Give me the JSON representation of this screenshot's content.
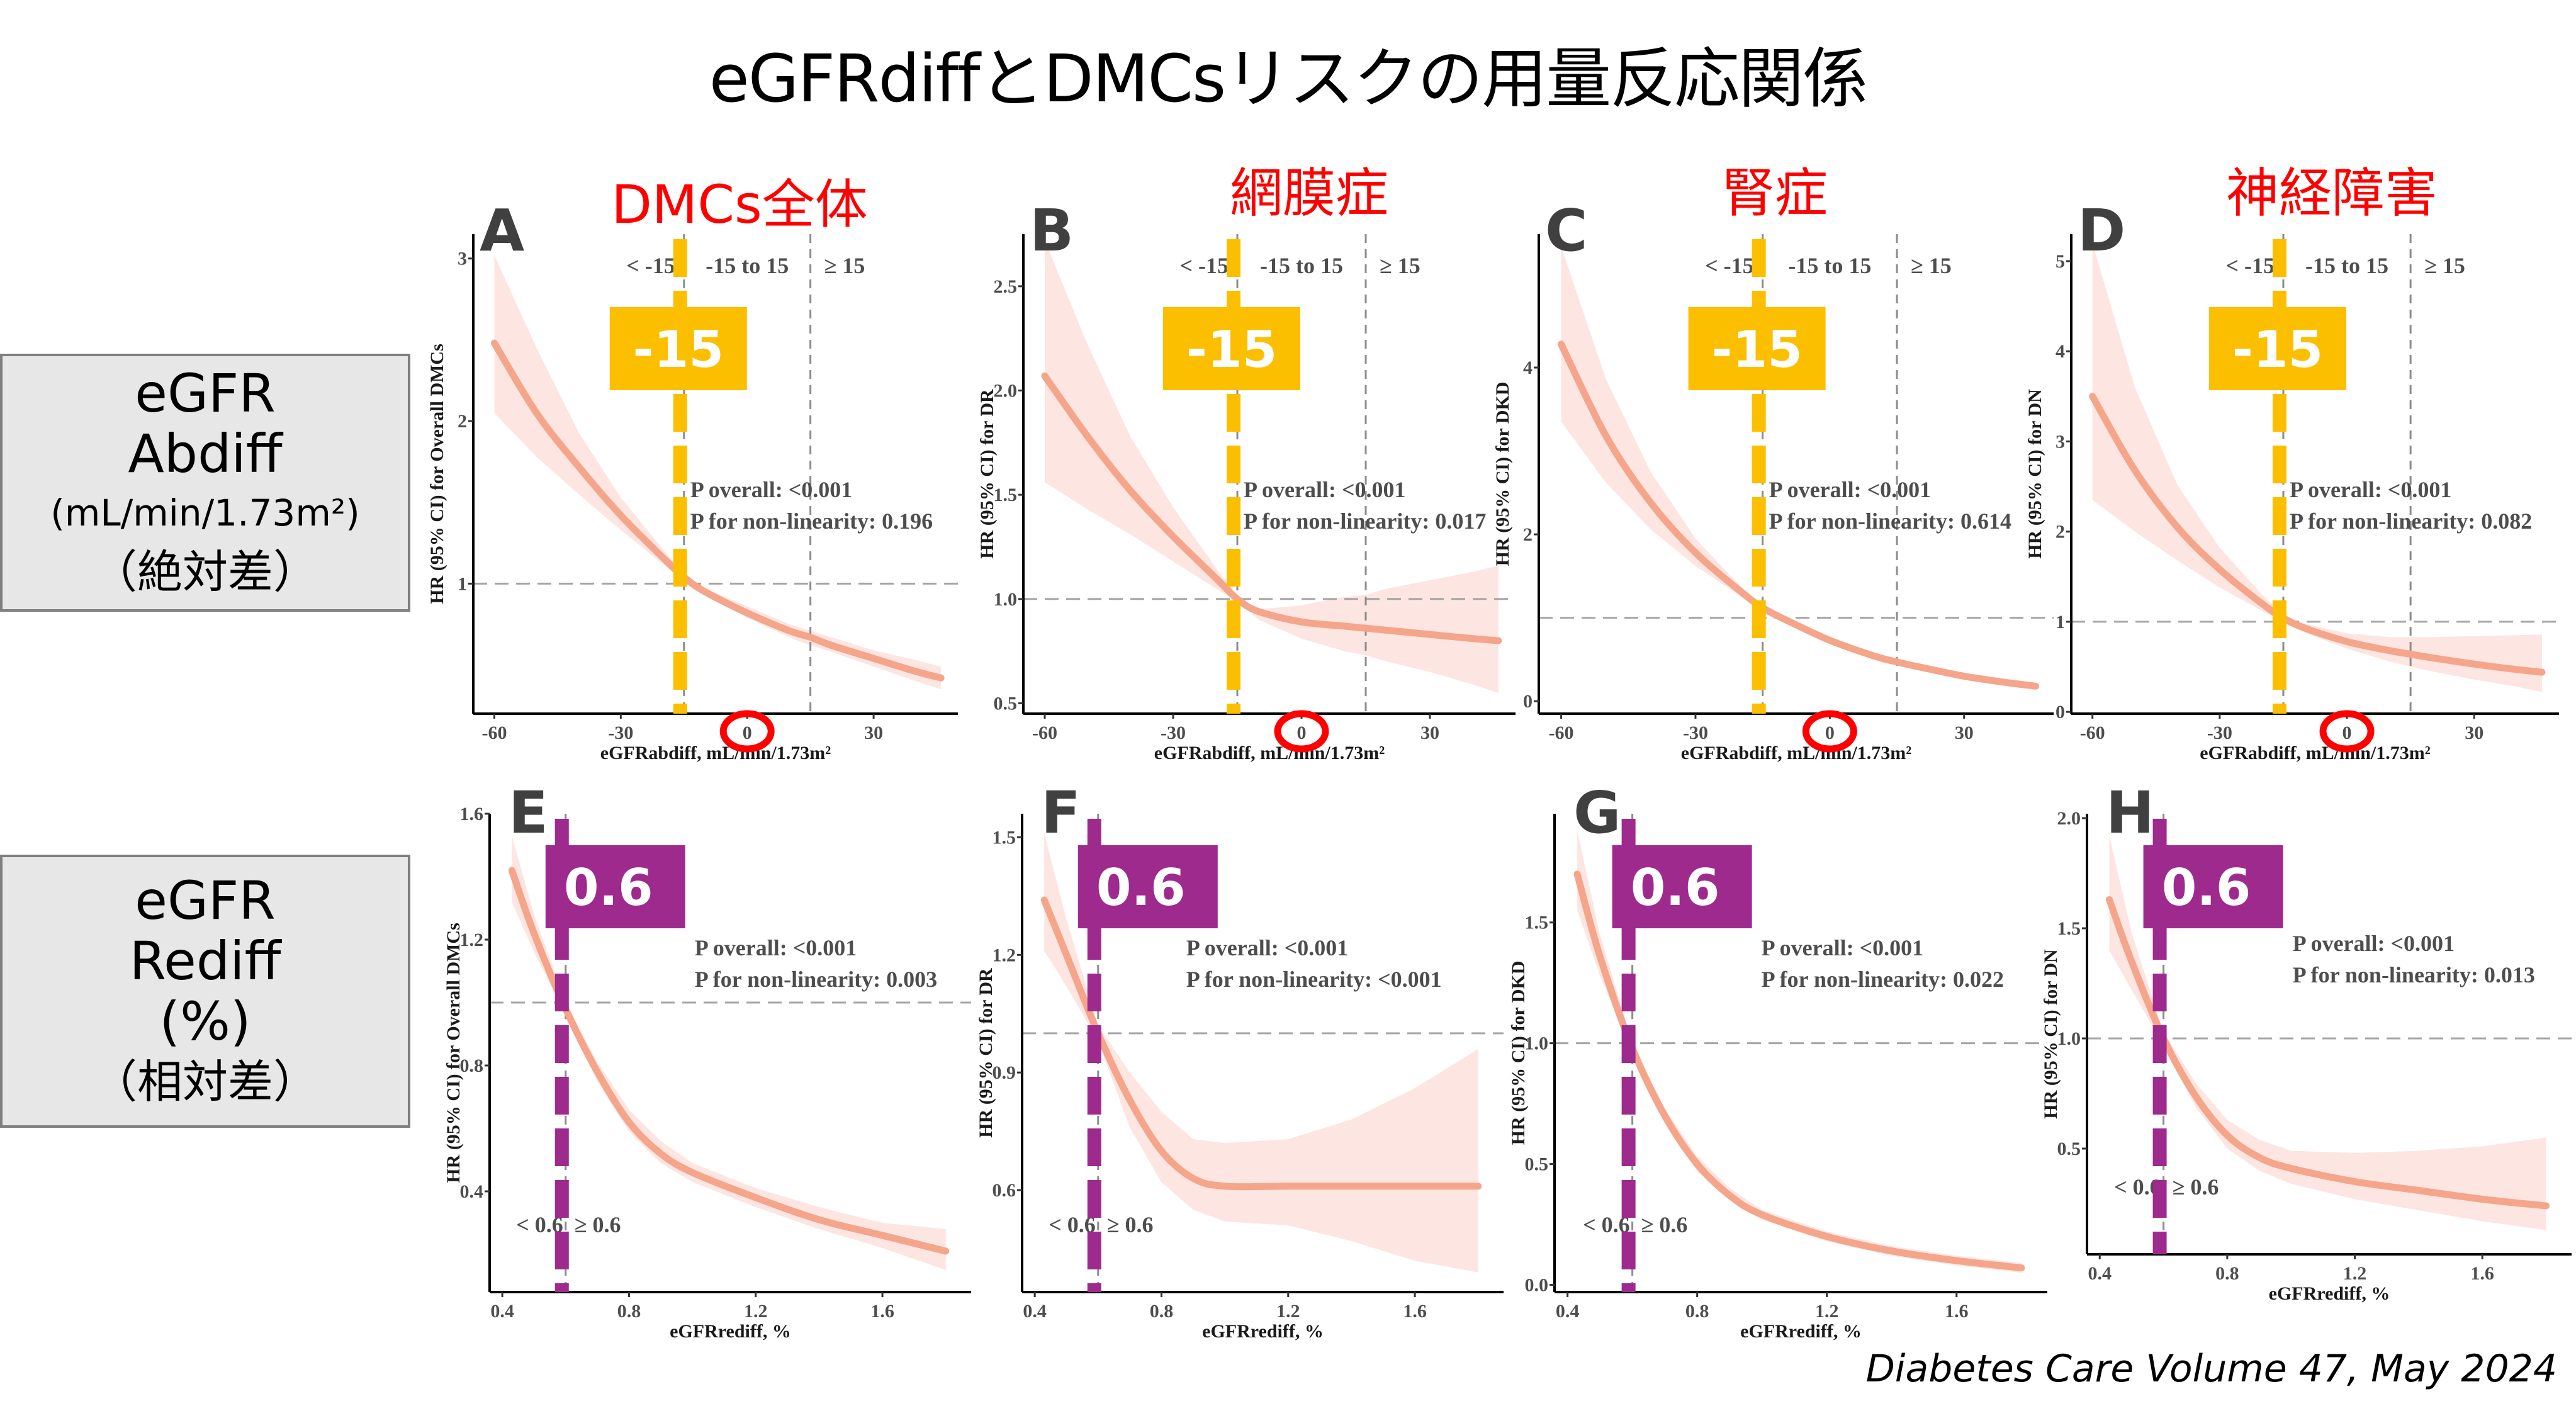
{
  "title": "eGFRdiffとDMCsリスクの用量反応関係",
  "column_headers": [
    "DMCs全体",
    "網膜症",
    "腎症",
    "神経障害"
  ],
  "row_labels": [
    {
      "line1": "eGFR",
      "line2": "Abdiff",
      "line3": "(mL/min/1.73m²)",
      "line4": "（絶対差）"
    },
    {
      "line1": "eGFR",
      "line2": "Rediff",
      "line3": "(%)",
      "line4": "（相対差）"
    }
  ],
  "footer": "Diabetes Care Volume 47, May 2024",
  "colors": {
    "curve": "#f4a58a",
    "ci_band": "#fde5e1",
    "abs_cutoff_marker": "#fbbf00",
    "rel_cutoff_marker": "#9e2a8e",
    "highlight_circle": "#ff0000",
    "subtitle": "#ff0000",
    "reference_line": "#a6a6a6"
  },
  "chart_data": [
    {
      "panel": "A",
      "type": "line",
      "xlabel": "eGFRabdiff, mL/min/1.73m²",
      "ylabel": "HR (95% CI) for Overall DMCs",
      "xlim": [
        -65,
        50
      ],
      "ylim": [
        0.2,
        3.15
      ],
      "xticks": [
        -60,
        -30,
        0,
        30
      ],
      "xtick_labels": [
        "-60",
        "-30",
        "0",
        "30"
      ],
      "yticks": [
        1,
        2,
        3
      ],
      "ytick_labels": [
        "1",
        "2",
        "3"
      ],
      "reference_y": 1,
      "cutpoints": [
        -15,
        15
      ],
      "region_labels": [
        "< -15",
        "-15 to 15",
        "≥ 15"
      ],
      "p_overall": "P overall: <0.001",
      "p_nonlinearity": "P for non-linearity: 0.196",
      "highlight_marker": {
        "value": -15,
        "label": "-15"
      },
      "highlight_tick": 0,
      "x": [
        -60,
        -50,
        -40,
        -30,
        -20,
        -15,
        -10,
        0,
        10,
        15,
        20,
        30,
        40,
        46
      ],
      "y": [
        2.48,
        2.05,
        1.72,
        1.42,
        1.16,
        1.04,
        0.95,
        0.82,
        0.71,
        0.67,
        0.62,
        0.54,
        0.46,
        0.42
      ],
      "lower": [
        2.05,
        1.78,
        1.55,
        1.33,
        1.12,
        1.02,
        0.93,
        0.79,
        0.67,
        0.62,
        0.58,
        0.49,
        0.4,
        0.35
      ],
      "upper": [
        3.02,
        2.45,
        1.93,
        1.53,
        1.21,
        1.06,
        0.97,
        0.86,
        0.75,
        0.71,
        0.67,
        0.59,
        0.53,
        0.49
      ]
    },
    {
      "panel": "B",
      "type": "line",
      "xlabel": "eGFRabdiff, mL/min/1.73m²",
      "ylabel": "HR (95% CI) for DR",
      "xlim": [
        -65,
        50
      ],
      "ylim": [
        0.45,
        2.75
      ],
      "xticks": [
        -60,
        -30,
        0,
        30
      ],
      "xtick_labels": [
        "-60",
        "-30",
        "0",
        "30"
      ],
      "yticks": [
        0.5,
        1.0,
        1.5,
        2.0,
        2.5
      ],
      "ytick_labels": [
        "0.5",
        "1.0",
        "1.5",
        "2.0",
        "2.5"
      ],
      "reference_y": 1,
      "cutpoints": [
        -15,
        15
      ],
      "region_labels": [
        "< -15",
        "-15 to 15",
        "≥ 15"
      ],
      "p_overall": "P overall: <0.001",
      "p_nonlinearity": "P for non-linearity: 0.017",
      "highlight_marker": {
        "value": -15,
        "label": "-15"
      },
      "highlight_tick": 0,
      "x": [
        -60,
        -50,
        -40,
        -30,
        -20,
        -15,
        -10,
        0,
        10,
        15,
        20,
        30,
        40,
        46
      ],
      "y": [
        2.07,
        1.78,
        1.52,
        1.3,
        1.1,
        1.0,
        0.94,
        0.89,
        0.87,
        0.86,
        0.85,
        0.83,
        0.81,
        0.8
      ],
      "lower": [
        1.56,
        1.43,
        1.31,
        1.18,
        1.05,
        0.99,
        0.9,
        0.81,
        0.75,
        0.73,
        0.7,
        0.65,
        0.59,
        0.55
      ],
      "upper": [
        2.72,
        2.22,
        1.78,
        1.44,
        1.15,
        1.01,
        0.95,
        0.97,
        1.01,
        1.02,
        1.05,
        1.09,
        1.13,
        1.16
      ]
    },
    {
      "panel": "C",
      "type": "line",
      "xlabel": "eGFRabdiff, mL/min/1.73m²",
      "ylabel": "HR (95% CI) for DKD",
      "xlim": [
        -65,
        50
      ],
      "ylim": [
        -0.15,
        5.6
      ],
      "xticks": [
        -60,
        -30,
        0,
        30
      ],
      "xtick_labels": [
        "-60",
        "-30",
        "0",
        "30"
      ],
      "yticks": [
        0,
        2,
        4
      ],
      "ytick_labels": [
        "0",
        "2",
        "4"
      ],
      "reference_y": 1,
      "cutpoints": [
        -15,
        15
      ],
      "region_labels": [
        "< -15",
        "-15 to 15",
        "≥ 15"
      ],
      "p_overall": "P overall: <0.001",
      "p_nonlinearity": "P for non-linearity: 0.614",
      "highlight_marker": {
        "value": -15,
        "label": "-15"
      },
      "highlight_tick": 0,
      "x": [
        -60,
        -50,
        -40,
        -30,
        -20,
        -15,
        -10,
        0,
        10,
        15,
        20,
        30,
        40,
        46
      ],
      "y": [
        4.28,
        3.18,
        2.38,
        1.78,
        1.32,
        1.12,
        0.98,
        0.73,
        0.54,
        0.47,
        0.41,
        0.3,
        0.22,
        0.18
      ],
      "lower": [
        3.35,
        2.62,
        2.06,
        1.62,
        1.26,
        1.09,
        0.95,
        0.7,
        0.51,
        0.44,
        0.38,
        0.28,
        0.2,
        0.16
      ],
      "upper": [
        5.45,
        3.86,
        2.75,
        1.95,
        1.38,
        1.15,
        1.01,
        0.76,
        0.57,
        0.5,
        0.44,
        0.33,
        0.24,
        0.2
      ]
    },
    {
      "panel": "D",
      "type": "line",
      "xlabel": "eGFRabdiff, mL/min/1.73m²",
      "ylabel": "HR (95% CI) for DN",
      "xlim": [
        -65,
        50
      ],
      "ylim": [
        -0.02,
        5.3
      ],
      "xticks": [
        -60,
        -30,
        0,
        30
      ],
      "xtick_labels": [
        "-60",
        "-30",
        "0",
        "30"
      ],
      "yticks": [
        0,
        1,
        2,
        3,
        4,
        5
      ],
      "ytick_labels": [
        "0",
        "1",
        "2",
        "3",
        "4",
        "5"
      ],
      "reference_y": 1,
      "cutpoints": [
        -15,
        15
      ],
      "region_labels": [
        "< -15",
        "-15 to 15",
        "≥ 15"
      ],
      "p_overall": "P overall: <0.001",
      "p_nonlinearity": "P for non-linearity: 0.082",
      "highlight_marker": {
        "value": -15,
        "label": "-15"
      },
      "highlight_tick": 0,
      "x": [
        -60,
        -50,
        -40,
        -30,
        -20,
        -15,
        -10,
        0,
        10,
        15,
        20,
        30,
        40,
        46
      ],
      "y": [
        3.5,
        2.68,
        2.05,
        1.58,
        1.2,
        1.04,
        0.93,
        0.78,
        0.68,
        0.64,
        0.6,
        0.53,
        0.47,
        0.44
      ],
      "lower": [
        2.35,
        2.0,
        1.68,
        1.38,
        1.12,
        1.0,
        0.88,
        0.7,
        0.56,
        0.5,
        0.45,
        0.36,
        0.28,
        0.22
      ],
      "upper": [
        5.2,
        3.6,
        2.52,
        1.82,
        1.3,
        1.08,
        0.98,
        0.87,
        0.83,
        0.83,
        0.83,
        0.84,
        0.85,
        0.86
      ]
    },
    {
      "panel": "E",
      "type": "line",
      "xlabel": "eGFRrediff, %",
      "ylabel": "HR (95% CI) for Overall DMCs",
      "xlim": [
        0.36,
        1.88
      ],
      "ylim": [
        0.08,
        1.6
      ],
      "xticks": [
        0.4,
        0.8,
        1.2,
        1.6
      ],
      "xtick_labels": [
        "0.4",
        "0.8",
        "1.2",
        "1.6"
      ],
      "yticks": [
        0.4,
        0.8,
        1.2,
        1.6
      ],
      "ytick_labels": [
        "0.4",
        "0.8",
        "1.2",
        "1.6"
      ],
      "reference_y": 1,
      "cutpoints": [
        0.6
      ],
      "region_labels": [
        "< 0.6",
        "≥ 0.6"
      ],
      "p_overall": "P overall: <0.001",
      "p_nonlinearity": "P for non-linearity: 0.003",
      "highlight_marker": {
        "value": 0.6,
        "label": "0.6"
      },
      "x": [
        0.43,
        0.5,
        0.6,
        0.7,
        0.8,
        0.9,
        1.0,
        1.2,
        1.4,
        1.6,
        1.8
      ],
      "y": [
        1.42,
        1.22,
        0.98,
        0.78,
        0.62,
        0.52,
        0.46,
        0.38,
        0.31,
        0.26,
        0.21
      ],
      "lower": [
        1.32,
        1.16,
        0.96,
        0.75,
        0.59,
        0.49,
        0.43,
        0.35,
        0.28,
        0.22,
        0.15
      ],
      "upper": [
        1.53,
        1.28,
        1.0,
        0.81,
        0.66,
        0.56,
        0.49,
        0.41,
        0.35,
        0.3,
        0.28
      ]
    },
    {
      "panel": "F",
      "type": "line",
      "xlabel": "eGFRrediff, %",
      "ylabel": "HR (95% CI) for DR",
      "xlim": [
        0.36,
        1.88
      ],
      "ylim": [
        0.34,
        1.56
      ],
      "xticks": [
        0.4,
        0.8,
        1.2,
        1.6
      ],
      "xtick_labels": [
        "0.4",
        "0.8",
        "1.2",
        "1.6"
      ],
      "yticks": [
        0.6,
        0.9,
        1.2,
        1.5
      ],
      "ytick_labels": [
        "0.6",
        "0.9",
        "1.2",
        "1.5"
      ],
      "reference_y": 1,
      "cutpoints": [
        0.6
      ],
      "region_labels": [
        "< 0.6",
        "≥ 0.6"
      ],
      "p_overall": "P overall: <0.001",
      "p_nonlinearity": "P for non-linearity: <0.001",
      "highlight_marker": {
        "value": 0.6,
        "label": "0.6"
      },
      "x": [
        0.43,
        0.5,
        0.6,
        0.7,
        0.8,
        0.9,
        1.0,
        1.2,
        1.4,
        1.6,
        1.8
      ],
      "y": [
        1.34,
        1.2,
        1.0,
        0.83,
        0.7,
        0.63,
        0.61,
        0.61,
        0.61,
        0.61,
        0.61
      ],
      "lower": [
        1.21,
        1.12,
        0.98,
        0.76,
        0.62,
        0.55,
        0.52,
        0.51,
        0.47,
        0.42,
        0.39
      ],
      "upper": [
        1.51,
        1.29,
        1.02,
        0.9,
        0.8,
        0.73,
        0.72,
        0.73,
        0.78,
        0.86,
        0.96
      ]
    },
    {
      "panel": "G",
      "type": "line",
      "xlabel": "eGFRrediff, %",
      "ylabel": "HR (95% CI) for DKD",
      "xlim": [
        0.36,
        1.88
      ],
      "ylim": [
        -0.03,
        1.95
      ],
      "xticks": [
        0.4,
        0.8,
        1.2,
        1.6
      ],
      "xtick_labels": [
        "0.4",
        "0.8",
        "1.2",
        "1.6"
      ],
      "yticks": [
        0.0,
        0.5,
        1.0,
        1.5
      ],
      "ytick_labels": [
        "0.0",
        "0.5",
        "1.0",
        "1.5"
      ],
      "reference_y": 1,
      "cutpoints": [
        0.6
      ],
      "region_labels": [
        "< 0.6",
        "≥ 0.6"
      ],
      "p_overall": "P overall: <0.001",
      "p_nonlinearity": "P for non-linearity: 0.022",
      "highlight_marker": {
        "value": 0.6,
        "label": "0.6"
      },
      "x": [
        0.43,
        0.5,
        0.6,
        0.7,
        0.8,
        0.9,
        1.0,
        1.2,
        1.4,
        1.6,
        1.8
      ],
      "y": [
        1.7,
        1.36,
        0.98,
        0.7,
        0.5,
        0.37,
        0.29,
        0.2,
        0.14,
        0.1,
        0.07
      ],
      "lower": [
        1.55,
        1.28,
        0.96,
        0.67,
        0.47,
        0.35,
        0.27,
        0.18,
        0.12,
        0.08,
        0.05
      ],
      "upper": [
        1.88,
        1.45,
        1.0,
        0.73,
        0.53,
        0.4,
        0.31,
        0.22,
        0.16,
        0.12,
        0.09
      ]
    },
    {
      "panel": "H",
      "type": "line",
      "xlabel": "eGFRrediff, %",
      "ylabel": "HR (95% CI) for DN",
      "xlim": [
        0.36,
        1.88
      ],
      "ylim": [
        0.02,
        2.02
      ],
      "xticks": [
        0.4,
        0.8,
        1.2,
        1.6
      ],
      "xtick_labels": [
        "0.4",
        "0.8",
        "1.2",
        "1.6"
      ],
      "yticks": [
        0.5,
        1.0,
        1.5,
        2.0
      ],
      "ytick_labels": [
        "0.5",
        "1.0",
        "1.5",
        "2.0"
      ],
      "reference_y": 1,
      "cutpoints": [
        0.6
      ],
      "region_labels": [
        "< 0.6",
        "≥ 0.6"
      ],
      "p_overall": "P overall: <0.001",
      "p_nonlinearity": "P for non-linearity: 0.013",
      "highlight_marker": {
        "value": 0.6,
        "label": "0.6"
      },
      "x": [
        0.43,
        0.5,
        0.6,
        0.7,
        0.8,
        0.9,
        1.0,
        1.2,
        1.4,
        1.6,
        1.8
      ],
      "y": [
        1.63,
        1.35,
        1.0,
        0.74,
        0.56,
        0.46,
        0.41,
        0.35,
        0.31,
        0.27,
        0.24
      ],
      "lower": [
        1.4,
        1.22,
        0.97,
        0.69,
        0.5,
        0.4,
        0.34,
        0.27,
        0.22,
        0.17,
        0.13
      ],
      "upper": [
        1.92,
        1.48,
        1.03,
        0.8,
        0.63,
        0.54,
        0.49,
        0.48,
        0.49,
        0.51,
        0.55
      ]
    }
  ]
}
